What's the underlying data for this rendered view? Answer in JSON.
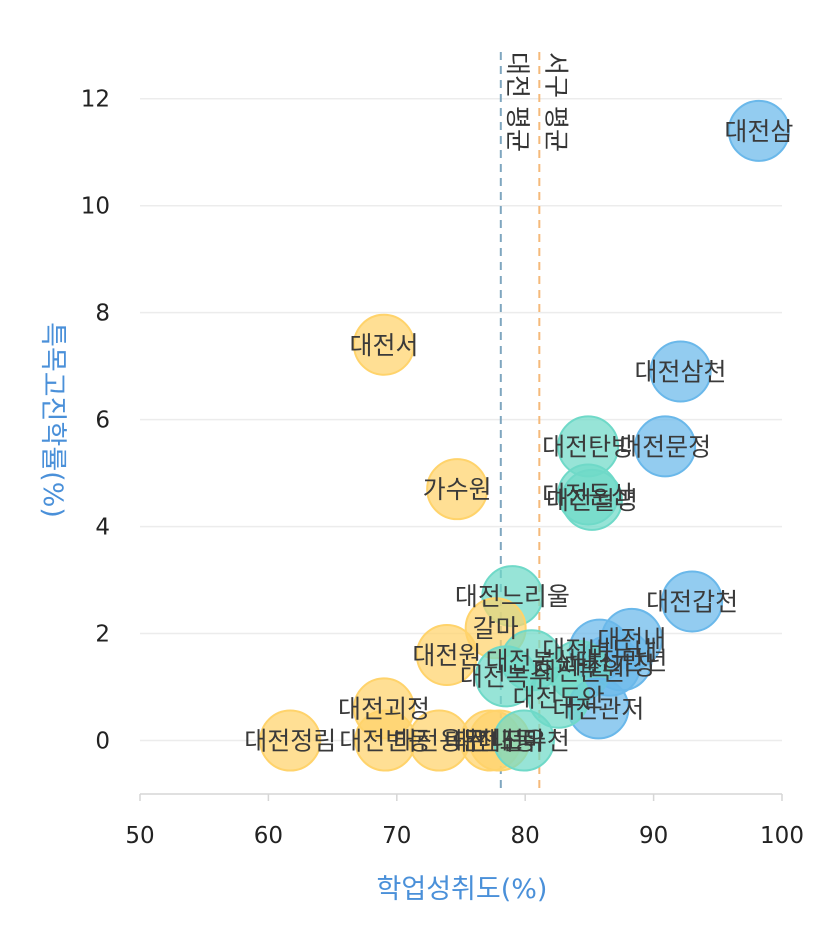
{
  "chart_data": {
    "type": "scatter",
    "title": "",
    "xlabel": "학업성취도(%)",
    "ylabel": "특목고진학률(%)",
    "xlim": [
      50,
      100
    ],
    "ylim": [
      -1,
      12.5
    ],
    "xticks": [
      "50",
      "60",
      "70",
      "80",
      "90",
      "100"
    ],
    "yticks": [
      "0",
      "2",
      "4",
      "6",
      "8",
      "10",
      "12"
    ],
    "grid": "horizontal",
    "reference_lines": [
      {
        "label": "대전 평균",
        "x": 78.1,
        "color": "#7fa6bf"
      },
      {
        "label": "서구 평균",
        "x": 81.1,
        "color": "#f5b97a"
      }
    ],
    "colors": {
      "yellow": "#ffd36b",
      "teal": "#6fd9c8",
      "blue": "#6ab8ea",
      "axis_title": "#4a90d9"
    },
    "points": [
      {
        "label": "대전삼",
        "x": 98.2,
        "y": 11.4,
        "color": "blue"
      },
      {
        "label": "대전삼천",
        "x": 92.1,
        "y": 6.9,
        "color": "blue"
      },
      {
        "label": "대전문정",
        "x": 90.9,
        "y": 5.5,
        "color": "blue"
      },
      {
        "label": "대전갑천",
        "x": 93.0,
        "y": 2.6,
        "color": "blue"
      },
      {
        "label": "대전탄방",
        "x": 84.9,
        "y": 5.5,
        "color": "teal"
      },
      {
        "label": "대전둔산",
        "x": 84.9,
        "y": 4.6,
        "color": "teal"
      },
      {
        "label": "대전월평",
        "x": 85.2,
        "y": 4.5,
        "color": "teal"
      },
      {
        "label": "대전서",
        "x": 69.0,
        "y": 7.4,
        "color": "yellow"
      },
      {
        "label": "가수원",
        "x": 74.7,
        "y": 4.7,
        "color": "yellow"
      },
      {
        "label": "대전느리울",
        "x": 79.0,
        "y": 2.7,
        "color": "teal"
      },
      {
        "label": "갈마",
        "x": 77.7,
        "y": 2.1,
        "color": "yellow"
      },
      {
        "label": "대전내",
        "x": 88.3,
        "y": 1.9,
        "color": "blue"
      },
      {
        "label": "대전버드내",
        "x": 85.8,
        "y": 1.7,
        "color": "blue"
      },
      {
        "label": "대전만년",
        "x": 87.5,
        "y": 1.5,
        "color": "blue"
      },
      {
        "label": "대전가장",
        "x": 86.6,
        "y": 1.4,
        "color": "blue"
      },
      {
        "label": "대전둔원",
        "x": 84.2,
        "y": 1.3,
        "color": "teal"
      },
      {
        "label": "대전봉산",
        "x": 80.5,
        "y": 1.5,
        "color": "teal"
      },
      {
        "label": "대전복수",
        "x": 78.5,
        "y": 1.2,
        "color": "teal"
      },
      {
        "label": "대전원",
        "x": 73.9,
        "y": 1.6,
        "color": "yellow"
      },
      {
        "label": "대전관저",
        "x": 85.7,
        "y": 0.6,
        "color": "blue"
      },
      {
        "label": "대전도안",
        "x": 82.6,
        "y": 0.8,
        "color": "teal"
      },
      {
        "label": "대전괴정",
        "x": 69.0,
        "y": 0.6,
        "color": "yellow"
      },
      {
        "label": "대전정림",
        "x": 61.7,
        "y": 0.0,
        "color": "yellow"
      },
      {
        "label": "대전변동",
        "x": 69.1,
        "y": 0.0,
        "color": "yellow"
      },
      {
        "label": "대전용문",
        "x": 73.3,
        "y": 0.0,
        "color": "yellow"
      },
      {
        "label": "대전내동",
        "x": 77.3,
        "y": 0.0,
        "color": "yellow"
      },
      {
        "label": "대전도마",
        "x": 78.0,
        "y": 0.0,
        "color": "yellow"
      },
      {
        "label": "대전유천",
        "x": 79.9,
        "y": 0.0,
        "color": "teal"
      }
    ]
  }
}
